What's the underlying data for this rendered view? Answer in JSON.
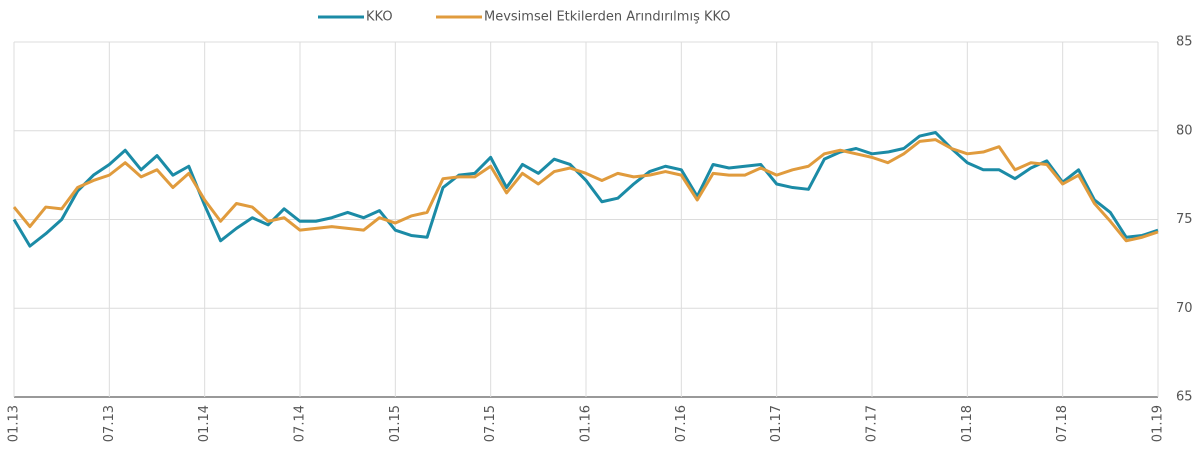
{
  "chart_data": {
    "type": "line",
    "categories": [
      "01.13",
      null,
      null,
      null,
      null,
      null,
      "07.13",
      null,
      null,
      null,
      null,
      null,
      "01.14",
      null,
      null,
      null,
      null,
      null,
      "07.14",
      null,
      null,
      null,
      null,
      null,
      "01.15",
      null,
      null,
      null,
      null,
      null,
      "07.15",
      null,
      null,
      null,
      null,
      null,
      "01.16",
      null,
      null,
      null,
      null,
      null,
      "07.16",
      null,
      null,
      null,
      null,
      null,
      "01.17",
      null,
      null,
      null,
      null,
      null,
      "07.17",
      null,
      null,
      null,
      null,
      null,
      "01.18",
      null,
      null,
      null,
      null,
      null,
      "07.18",
      null,
      null,
      null,
      null,
      null,
      "01.19"
    ],
    "series": [
      {
        "name": "KKO",
        "color": "#1b8ba6",
        "values": [
          75.0,
          73.5,
          74.2,
          75.0,
          76.6,
          77.5,
          78.1,
          78.9,
          77.8,
          78.6,
          77.5,
          78.0,
          75.8,
          73.8,
          74.5,
          75.1,
          74.7,
          75.6,
          74.9,
          74.9,
          75.1,
          75.4,
          75.1,
          75.5,
          74.4,
          74.1,
          74.0,
          76.8,
          77.5,
          77.6,
          78.5,
          76.8,
          78.1,
          77.6,
          78.4,
          78.1,
          77.2,
          76.0,
          76.2,
          77.0,
          77.7,
          78.0,
          77.8,
          76.3,
          78.1,
          77.9,
          78.0,
          78.1,
          77.0,
          76.8,
          76.7,
          78.4,
          78.8,
          79.0,
          78.7,
          78.8,
          79.0,
          79.7,
          79.9,
          79.0,
          78.2,
          77.8,
          77.8,
          77.3,
          77.9,
          78.3,
          77.1,
          77.8,
          76.1,
          75.4,
          74.0,
          74.1,
          74.4
        ]
      },
      {
        "name": "Mevsimsel Etkilerden Arındırılmış KKO",
        "color": "#e09b3d",
        "values": [
          75.7,
          74.6,
          75.7,
          75.6,
          76.8,
          77.2,
          77.5,
          78.2,
          77.4,
          77.8,
          76.8,
          77.6,
          76.1,
          74.9,
          75.9,
          75.7,
          74.9,
          75.1,
          74.4,
          74.5,
          74.6,
          74.5,
          74.4,
          75.1,
          74.8,
          75.2,
          75.4,
          77.3,
          77.4,
          77.4,
          78.0,
          76.5,
          77.6,
          77.0,
          77.7,
          77.9,
          77.6,
          77.2,
          77.6,
          77.4,
          77.5,
          77.7,
          77.5,
          76.1,
          77.6,
          77.5,
          77.5,
          77.9,
          77.5,
          77.8,
          78.0,
          78.7,
          78.9,
          78.7,
          78.5,
          78.2,
          78.7,
          79.4,
          79.5,
          79.0,
          78.7,
          78.8,
          79.1,
          77.8,
          78.2,
          78.1,
          77.0,
          77.5,
          75.9,
          74.9,
          73.8,
          74.0,
          74.3
        ]
      }
    ],
    "ylim": [
      65,
      85
    ],
    "yticks": [
      65,
      70,
      75,
      80,
      85
    ],
    "grid": true,
    "legend": "top"
  }
}
